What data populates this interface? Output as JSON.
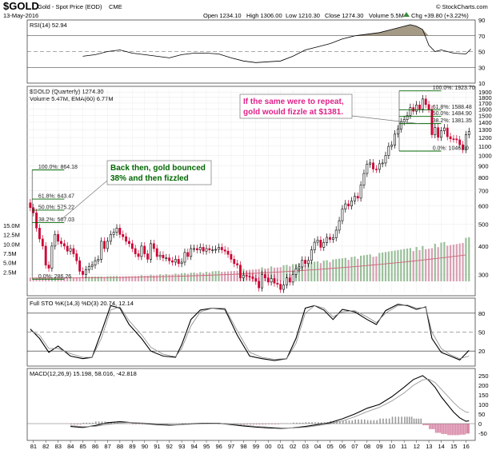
{
  "header": {
    "symbol": "$GOLD",
    "name": "Gold - Spot Price (EOD)",
    "exchange": "CME",
    "date": "13-May-2016",
    "open": "Open 1234.10",
    "high": "High 1306.00",
    "low": "Low 1210.30",
    "close": "Close 1274.30",
    "volume": "Volume 5.5M",
    "change": "Chg +39.80 (+3.22%)",
    "change_icon": "up-triangle-icon",
    "credit": "© StockCharts.com"
  },
  "colors": {
    "up": "#000000",
    "down": "#cc0033",
    "volume_up": "#9bbf9b",
    "volume_down": "#d9a0b4",
    "annotation_green": "#006600",
    "annotation_pink": "#e0208a",
    "ema": "#cc6677",
    "fib_line": "#006600"
  },
  "chart_data": [
    {
      "type": "line",
      "panel": "rsi",
      "label": "RSI(14) 52.94",
      "ylim": [
        10,
        90
      ],
      "ticks": [
        10,
        30,
        50,
        70,
        90
      ],
      "ticks_labels": [
        "10",
        "30",
        "50",
        "70",
        "90"
      ],
      "ref_lines": [
        30,
        50,
        70
      ],
      "x": [
        1985.0,
        1986.0,
        1987.0,
        1988.0,
        1989.0,
        1990.0,
        1991.0,
        1992.0,
        1993.0,
        1994.0,
        1995.0,
        1996.0,
        1997.0,
        1998.0,
        1999.0,
        2000.0,
        2001.0,
        2002.0,
        2003.0,
        2004.0,
        2005.0,
        2006.0,
        2007.0,
        2008.0,
        2009.0,
        2010.0,
        2011.0,
        2011.5,
        2012.0,
        2012.5,
        2013.0,
        2013.5,
        2014.0,
        2015.0,
        2016.0,
        2016.4
      ],
      "values": [
        44,
        46,
        50,
        52,
        48,
        46,
        44,
        42,
        46,
        48,
        48,
        47,
        42,
        38,
        36,
        37,
        38,
        44,
        52,
        56,
        60,
        66,
        70,
        72,
        74,
        78,
        82,
        84,
        82,
        78,
        58,
        50,
        52,
        48,
        47,
        53
      ]
    },
    {
      "type": "candlestick",
      "panel": "price",
      "label": "$GOLD (Quarterly) 1274.30",
      "sublabel": "Volume 5.47M, EMA(60) 6.77M",
      "yscale": "log",
      "ylim": [
        250,
        1950
      ],
      "yticks": [
        300,
        400,
        500,
        600,
        700,
        800,
        900,
        1000,
        1100,
        1200,
        1300,
        1400,
        1500,
        1600,
        1700,
        1800,
        1900
      ],
      "yticks_labels": [
        "300",
        "400",
        "500",
        "600",
        "700",
        "800",
        "900",
        "1000",
        "1100",
        "1200",
        "1300",
        "1400",
        "1500",
        "1600",
        "1700",
        "1800",
        "1900"
      ],
      "volume_ticks_labels": [
        "2.5M",
        "5.0M",
        "7.5M",
        "10.0M",
        "12.5M",
        "15.0M"
      ],
      "x_ticks": [
        "81",
        "82",
        "83",
        "84",
        "85",
        "86",
        "87",
        "88",
        "89",
        "90",
        "91",
        "92",
        "93",
        "94",
        "95",
        "96",
        "97",
        "98",
        "99",
        "00",
        "01",
        "02",
        "03",
        "04",
        "05",
        "06",
        "07",
        "08",
        "09",
        "10",
        "11",
        "12",
        "13",
        "14",
        "15",
        "16"
      ],
      "closes": [
        [
          1980.75,
          590
        ],
        [
          1981.0,
          560
        ],
        [
          1981.25,
          480
        ],
        [
          1981.5,
          430
        ],
        [
          1981.75,
          400
        ],
        [
          1982.0,
          330
        ],
        [
          1982.25,
          320
        ],
        [
          1982.5,
          400
        ],
        [
          1982.75,
          450
        ],
        [
          1983.0,
          420
        ],
        [
          1983.25,
          410
        ],
        [
          1983.5,
          400
        ],
        [
          1983.75,
          380
        ],
        [
          1984.0,
          390
        ],
        [
          1984.25,
          370
        ],
        [
          1984.5,
          345
        ],
        [
          1984.75,
          310
        ],
        [
          1985.0,
          300
        ],
        [
          1985.25,
          315
        ],
        [
          1985.5,
          325
        ],
        [
          1985.75,
          330
        ],
        [
          1986.0,
          345
        ],
        [
          1986.25,
          350
        ],
        [
          1986.5,
          420
        ],
        [
          1986.75,
          390
        ],
        [
          1987.0,
          420
        ],
        [
          1987.25,
          450
        ],
        [
          1987.5,
          460
        ],
        [
          1987.75,
          480
        ],
        [
          1988.0,
          450
        ],
        [
          1988.25,
          440
        ],
        [
          1988.5,
          420
        ],
        [
          1988.75,
          410
        ],
        [
          1989.0,
          390
        ],
        [
          1989.25,
          370
        ],
        [
          1989.5,
          360
        ],
        [
          1989.75,
          400
        ],
        [
          1990.0,
          370
        ],
        [
          1990.25,
          350
        ],
        [
          1990.5,
          410
        ],
        [
          1990.75,
          390
        ],
        [
          1991.0,
          360
        ],
        [
          1991.25,
          365
        ],
        [
          1991.5,
          355
        ],
        [
          1991.75,
          355
        ],
        [
          1992.0,
          345
        ],
        [
          1992.25,
          340
        ],
        [
          1992.5,
          350
        ],
        [
          1992.75,
          335
        ],
        [
          1993.0,
          340
        ],
        [
          1993.25,
          375
        ],
        [
          1993.5,
          360
        ],
        [
          1993.75,
          390
        ],
        [
          1994.0,
          390
        ],
        [
          1994.25,
          385
        ],
        [
          1994.5,
          395
        ],
        [
          1994.75,
          380
        ],
        [
          1995.0,
          390
        ],
        [
          1995.25,
          385
        ],
        [
          1995.5,
          385
        ],
        [
          1995.75,
          387
        ],
        [
          1996.0,
          395
        ],
        [
          1996.25,
          385
        ],
        [
          1996.5,
          380
        ],
        [
          1996.75,
          368
        ],
        [
          1997.0,
          350
        ],
        [
          1997.25,
          335
        ],
        [
          1997.5,
          330
        ],
        [
          1997.75,
          290
        ],
        [
          1998.0,
          298
        ],
        [
          1998.25,
          295
        ],
        [
          1998.5,
          293
        ],
        [
          1998.75,
          288
        ],
        [
          1999.0,
          280
        ],
        [
          1999.25,
          262
        ],
        [
          1999.5,
          300
        ],
        [
          1999.75,
          290
        ],
        [
          2000.0,
          278
        ],
        [
          2000.25,
          288
        ],
        [
          2000.5,
          275
        ],
        [
          2000.75,
          272
        ],
        [
          2001.0,
          258
        ],
        [
          2001.25,
          270
        ],
        [
          2001.5,
          290
        ],
        [
          2001.75,
          278
        ],
        [
          2002.0,
          300
        ],
        [
          2002.25,
          318
        ],
        [
          2002.5,
          324
        ],
        [
          2002.75,
          347
        ],
        [
          2003.0,
          335
        ],
        [
          2003.25,
          346
        ],
        [
          2003.5,
          385
        ],
        [
          2003.75,
          416
        ],
        [
          2004.0,
          425
        ],
        [
          2004.25,
          395
        ],
        [
          2004.5,
          415
        ],
        [
          2004.75,
          437
        ],
        [
          2005.0,
          428
        ],
        [
          2005.25,
          435
        ],
        [
          2005.5,
          470
        ],
        [
          2005.75,
          517
        ],
        [
          2006.0,
          582
        ],
        [
          2006.25,
          613
        ],
        [
          2006.5,
          600
        ],
        [
          2006.75,
          632
        ],
        [
          2007.0,
          662
        ],
        [
          2007.25,
          650
        ],
        [
          2007.5,
          742
        ],
        [
          2007.75,
          834
        ],
        [
          2008.0,
          916
        ],
        [
          2008.25,
          928
        ],
        [
          2008.5,
          872
        ],
        [
          2008.75,
          869
        ],
        [
          2009.0,
          920
        ],
        [
          2009.25,
          927
        ],
        [
          2009.5,
          1000
        ],
        [
          2009.75,
          1097
        ],
        [
          2010.0,
          1113
        ],
        [
          2010.25,
          1242
        ],
        [
          2010.5,
          1307
        ],
        [
          2010.75,
          1405
        ],
        [
          2011.0,
          1439
        ],
        [
          2011.25,
          1500
        ],
        [
          2011.5,
          1624
        ],
        [
          2011.75,
          1566
        ],
        [
          2012.0,
          1668
        ],
        [
          2012.25,
          1598
        ],
        [
          2012.5,
          1772
        ],
        [
          2012.75,
          1675
        ],
        [
          2013.0,
          1596
        ],
        [
          2013.25,
          1234
        ],
        [
          2013.5,
          1326
        ],
        [
          2013.75,
          1202
        ],
        [
          2014.0,
          1284
        ],
        [
          2014.25,
          1322
        ],
        [
          2014.5,
          1210
        ],
        [
          2014.75,
          1184
        ],
        [
          2015.0,
          1183
        ],
        [
          2015.25,
          1172
        ],
        [
          2015.5,
          1115
        ],
        [
          2015.75,
          1061
        ],
        [
          2016.0,
          1234
        ],
        [
          2016.25,
          1274
        ]
      ],
      "fib_left": {
        "levels": [
          "100.0%: 864.18",
          "61.8%: 643.47",
          "50.0%: 575.22",
          "38.2%: 507.03",
          "0.0%: 286.26"
        ],
        "values": [
          864.18,
          643.47,
          575.22,
          507.03,
          286.26
        ]
      },
      "fib_right": {
        "levels": [
          "100.0%: 1923.70",
          "61.8%: 1588.48",
          "50.0%: 1484.90",
          "38.2%: 1381.35",
          "0.0%: 1046.20"
        ],
        "values": [
          1923.7,
          1588.48,
          1484.9,
          1381.35,
          1046.2
        ]
      },
      "annotations": [
        "Back then, gold bounced\n38% and then fizzled",
        "If the same were to repeat,\ngold would fizzle at $1381."
      ]
    },
    {
      "type": "line",
      "panel": "stochastic",
      "label": "Full STO %K(14,3) %D(3) 20.74, 12.14",
      "ylim": [
        0,
        100
      ],
      "ticks_labels": [
        "20",
        "50",
        "80"
      ],
      "ref_lines": [
        20,
        50,
        80
      ],
      "x": [
        1980.75,
        1981.5,
        1982.25,
        1983.0,
        1984.0,
        1985.0,
        1985.75,
        1986.5,
        1987.25,
        1988.0,
        1988.75,
        1989.75,
        1990.5,
        1991.5,
        1992.5,
        1993.0,
        1993.75,
        1994.5,
        1995.5,
        1996.5,
        1997.5,
        1998.5,
        1999.5,
        2000.5,
        2001.5,
        2002.25,
        2003.0,
        2003.75,
        2004.5,
        2005.25,
        2006.0,
        2007.0,
        2008.0,
        2008.75,
        2009.5,
        2010.5,
        2011.25,
        2012.0,
        2012.75,
        2013.25,
        2014.0,
        2014.75,
        2015.5,
        2016.25
      ],
      "series": [
        {
          "name": "%K",
          "values": [
            55,
            40,
            18,
            28,
            12,
            8,
            10,
            50,
            92,
            88,
            62,
            40,
            20,
            12,
            10,
            30,
            70,
            85,
            88,
            86,
            45,
            12,
            8,
            5,
            8,
            40,
            88,
            92,
            85,
            70,
            86,
            82,
            70,
            62,
            84,
            94,
            92,
            86,
            90,
            40,
            18,
            12,
            6,
            21
          ]
        },
        {
          "name": "%D",
          "values": [
            52,
            45,
            24,
            24,
            16,
            10,
            10,
            40,
            85,
            90,
            68,
            46,
            26,
            15,
            11,
            24,
            60,
            82,
            88,
            88,
            52,
            18,
            10,
            7,
            8,
            32,
            80,
            92,
            88,
            74,
            82,
            84,
            74,
            65,
            80,
            92,
            93,
            88,
            89,
            50,
            24,
            14,
            8,
            12
          ]
        }
      ]
    },
    {
      "type": "line",
      "panel": "macd",
      "label": "MACD(12,26,9) 15.198, 58.016, -42.818",
      "ylim": [
        -75,
        275
      ],
      "ticks_labels": [
        "-50",
        "0",
        "50",
        "100",
        "150",
        "200",
        "250"
      ],
      "x": [
        1984.0,
        1985.0,
        1986.0,
        1987.0,
        1988.0,
        1989.0,
        1990.0,
        1991.0,
        1992.0,
        1993.0,
        1994.0,
        1995.0,
        1996.0,
        1997.0,
        1998.0,
        1999.0,
        2000.0,
        2001.0,
        2002.0,
        2003.0,
        2004.0,
        2005.0,
        2006.0,
        2007.0,
        2008.0,
        2009.0,
        2010.0,
        2011.0,
        2011.75,
        2012.5,
        2013.0,
        2013.5,
        2014.0,
        2014.5,
        2015.0,
        2015.5,
        2016.0,
        2016.25
      ],
      "series": [
        {
          "name": "MACD",
          "values": [
            -15,
            -20,
            -10,
            5,
            10,
            5,
            0,
            -5,
            -8,
            -5,
            0,
            2,
            2,
            -5,
            -12,
            -18,
            -22,
            -25,
            -22,
            -15,
            -5,
            5,
            25,
            50,
            80,
            100,
            140,
            190,
            230,
            250,
            225,
            190,
            140,
            100,
            60,
            30,
            12,
            15
          ]
        },
        {
          "name": "Signal",
          "values": [
            -10,
            -16,
            -14,
            -4,
            4,
            6,
            3,
            -2,
            -5,
            -6,
            -2,
            0,
            1,
            -2,
            -8,
            -14,
            -18,
            -22,
            -23,
            -19,
            -11,
            -1,
            14,
            36,
            62,
            85,
            118,
            160,
            200,
            228,
            232,
            214,
            180,
            145,
            110,
            80,
            60,
            58
          ]
        }
      ]
    }
  ]
}
